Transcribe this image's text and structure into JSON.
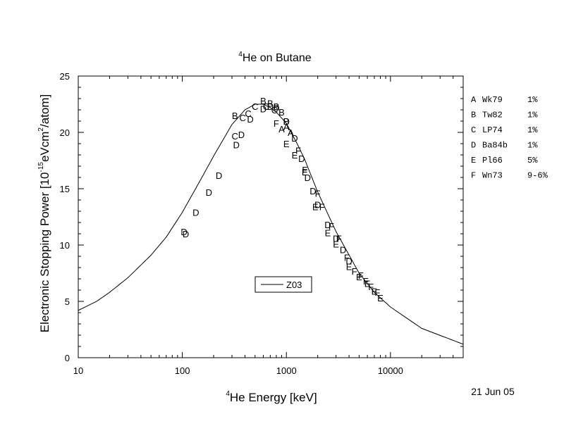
{
  "chart_data": {
    "type": "scatter",
    "title_superscript": "4",
    "title_text": "He on Butane",
    "xlabel_superscript": "4",
    "xlabel_text": "He Energy [keV]",
    "ylabel": {
      "part1": "Electronic Stopping Power [10",
      "exp1": "-15",
      "part2": "eVcm",
      "exp2": "2",
      "part3": "/atom]"
    },
    "x_scale": "log",
    "xlim": [
      10,
      50000
    ],
    "ylim": [
      0,
      25
    ],
    "x_ticks": [
      {
        "value": 10,
        "label": "10"
      },
      {
        "value": 100,
        "label": "100"
      },
      {
        "value": 1000,
        "label": "1000"
      },
      {
        "value": 10000,
        "label": "10000"
      }
    ],
    "y_ticks": [
      {
        "value": 0,
        "label": "0"
      },
      {
        "value": 5,
        "label": "5"
      },
      {
        "value": 10,
        "label": "10"
      },
      {
        "value": 15,
        "label": "15"
      },
      {
        "value": 20,
        "label": "20"
      },
      {
        "value": 25,
        "label": "25"
      }
    ],
    "date_text": "21 Jun 05",
    "legend_entries": [
      {
        "marker": "A",
        "name": "Wk79",
        "uncertainty": "1%"
      },
      {
        "marker": "B",
        "name": "Tw82",
        "uncertainty": "1%"
      },
      {
        "marker": "C",
        "name": "LP74",
        "uncertainty": "1%"
      },
      {
        "marker": "D",
        "name": "Ba84b",
        "uncertainty": "1%"
      },
      {
        "marker": "E",
        "name": "Pl66",
        "uncertainty": "5%"
      },
      {
        "marker": "F",
        "name": "Wn73",
        "uncertainty": "9-6%"
      }
    ],
    "curve": {
      "name": "Z03",
      "x": [
        10,
        15,
        20,
        30,
        50,
        70,
        100,
        150,
        200,
        300,
        400,
        500,
        600,
        700,
        800,
        1000,
        1300,
        1500,
        2000,
        3000,
        5000,
        7000,
        10000,
        20000,
        50000
      ],
      "y": [
        4.2,
        5.0,
        5.8,
        7.1,
        9.1,
        10.7,
        12.9,
        15.8,
        17.9,
        20.7,
        22.0,
        22.5,
        22.5,
        22.2,
        21.8,
        20.8,
        18.8,
        17.6,
        14.7,
        11.2,
        7.5,
        5.8,
        4.5,
        2.6,
        1.2
      ]
    },
    "series": [
      {
        "marker": "A",
        "x": [
          900,
          1000,
          1100
        ],
        "y": [
          20.3,
          20.5,
          20.0
        ]
      },
      {
        "marker": "B",
        "x": [
          320,
          600,
          700,
          800,
          900,
          1000
        ],
        "y": [
          21.5,
          22.8,
          22.6,
          22.3,
          21.8,
          21.0
        ]
      },
      {
        "marker": "C",
        "x": [
          320,
          380,
          430,
          500,
          640,
          770
        ],
        "y": [
          19.7,
          21.3,
          21.7,
          22.3,
          22.3,
          22.0
        ]
      },
      {
        "marker": "D",
        "x": [
          104,
          108,
          135,
          180,
          225,
          330,
          370,
          450,
          600,
          700,
          800,
          1000,
          1200,
          1400,
          1600,
          1800,
          2000,
          2500,
          3000,
          3500,
          4000
        ],
        "y": [
          11.2,
          11.0,
          12.9,
          14.7,
          16.2,
          18.9,
          19.8,
          21.2,
          22.1,
          22.3,
          22.2,
          21.0,
          19.5,
          17.7,
          16.0,
          14.8,
          13.6,
          11.8,
          10.6,
          9.6,
          8.6
        ]
      },
      {
        "marker": "E",
        "x": [
          1000,
          1200,
          1500,
          1900,
          2500,
          3000,
          4000,
          5000,
          6000,
          7000,
          8000
        ],
        "y": [
          19.0,
          18.0,
          16.5,
          13.4,
          11.1,
          10.1,
          8.1,
          7.2,
          6.6,
          5.9,
          5.3
        ]
      },
      {
        "marker": "F",
        "x": [
          800,
          1300,
          1500,
          2000,
          2200,
          2700,
          3200,
          3800,
          4500,
          5200,
          5800,
          6500,
          7500
        ],
        "y": [
          20.8,
          18.4,
          16.7,
          14.6,
          13.4,
          11.7,
          10.6,
          8.9,
          7.7,
          7.3,
          6.8,
          6.3,
          5.8
        ]
      }
    ]
  }
}
